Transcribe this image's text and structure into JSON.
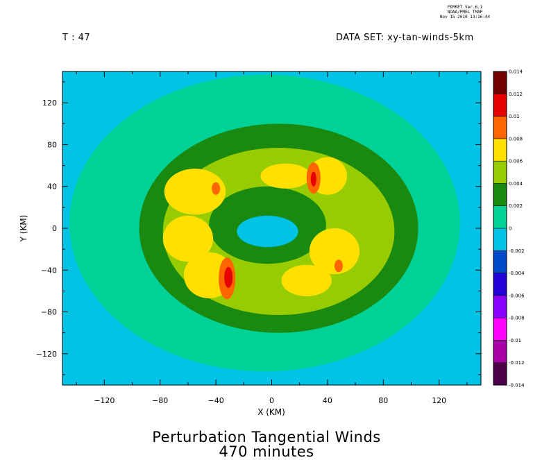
{
  "stamp": {
    "line1": "FERRET Ver.6.1",
    "line2": "NOAA/PMEL TMAP",
    "line3": "Nov 15 2010 13:16:44"
  },
  "header": {
    "time_label": "T : 47",
    "dataset_label": "DATA SET: xy-tan-winds-5km"
  },
  "title": {
    "line1": "Perturbation Tangential Winds",
    "line2": "470 minutes"
  },
  "chart_data": {
    "type": "heatmap",
    "xlabel": "X (KM)",
    "ylabel": "Y (KM)",
    "xlim": [
      -150,
      150
    ],
    "ylim": [
      -150,
      150
    ],
    "xticks": [
      -120,
      -80,
      -40,
      0,
      40,
      80,
      120
    ],
    "yticks": [
      -120,
      -80,
      -40,
      0,
      40,
      80,
      120
    ],
    "grid": false,
    "colorbar": {
      "levels": [
        -0.014,
        -0.012,
        -0.01,
        -0.008,
        -0.006,
        -0.004,
        -0.002,
        0,
        0.002,
        0.004,
        0.006,
        0.008,
        0.01,
        0.012,
        0.014
      ],
      "level_labels": [
        "-0.014",
        "-0.012",
        "-0.01",
        "-0.008",
        "-0.006",
        "-0.004",
        "-0.002",
        "0",
        "0.002",
        "0.004",
        "0.006",
        "0.008",
        "0.01",
        "0.012",
        "0.014"
      ],
      "colors": [
        "#4a0048",
        "#a800a8",
        "#ff00ff",
        "#8a00ff",
        "#2200d8",
        "#0048c8",
        "#00c3e6",
        "#00d197",
        "#198a0f",
        "#97cc00",
        "#ffe000",
        "#ff6600",
        "#e60000",
        "#720000"
      ]
    },
    "features": [
      {
        "shape": "ellipse",
        "cx": -5,
        "cy": 5,
        "rx": 140,
        "ry": 142,
        "value_range": [
          0,
          0.002
        ]
      },
      {
        "shape": "ellipse",
        "cx": 5,
        "cy": 0,
        "rx": 100,
        "ry": 100,
        "value_range": [
          0.002,
          0.004
        ]
      },
      {
        "shape": "ellipse",
        "cx": 5,
        "cy": -3,
        "rx": 83,
        "ry": 80,
        "value_range": [
          0.004,
          0.006
        ]
      },
      {
        "shape": "ellipse",
        "cx": -3,
        "cy": 3,
        "rx": 42,
        "ry": 37,
        "value_range": [
          0.002,
          0.004
        ]
      },
      {
        "shape": "ellipse",
        "cx": -3,
        "cy": -3,
        "rx": 22,
        "ry": 15,
        "value_range": [
          -0.002,
          0
        ]
      },
      {
        "shape": "ellipse",
        "cx": -55,
        "cy": 35,
        "rx": 22,
        "ry": 22,
        "value_range": [
          0.006,
          0.008
        ]
      },
      {
        "shape": "ellipse",
        "cx": -60,
        "cy": -10,
        "rx": 18,
        "ry": 22,
        "value_range": [
          0.006,
          0.008
        ]
      },
      {
        "shape": "ellipse",
        "cx": -45,
        "cy": -45,
        "rx": 18,
        "ry": 22,
        "value_range": [
          0.006,
          0.008
        ]
      },
      {
        "shape": "ellipse",
        "cx": 10,
        "cy": 50,
        "rx": 18,
        "ry": 12,
        "value_range": [
          0.006,
          0.008
        ]
      },
      {
        "shape": "ellipse",
        "cx": 40,
        "cy": 50,
        "rx": 14,
        "ry": 18,
        "value_range": [
          0.006,
          0.008
        ]
      },
      {
        "shape": "ellipse",
        "cx": 45,
        "cy": -22,
        "rx": 18,
        "ry": 22,
        "value_range": [
          0.006,
          0.008
        ]
      },
      {
        "shape": "ellipse",
        "cx": 25,
        "cy": -50,
        "rx": 18,
        "ry": 15,
        "value_range": [
          0.006,
          0.008
        ]
      },
      {
        "shape": "ellipse",
        "cx": -32,
        "cy": -48,
        "rx": 6,
        "ry": 20,
        "value_range": [
          0.008,
          0.01
        ]
      },
      {
        "shape": "ellipse",
        "cx": -31,
        "cy": -47,
        "rx": 3,
        "ry": 10,
        "value_range": [
          0.01,
          0.012
        ]
      },
      {
        "shape": "ellipse",
        "cx": 30,
        "cy": 48,
        "rx": 5,
        "ry": 15,
        "value_range": [
          0.008,
          0.01
        ]
      },
      {
        "shape": "ellipse",
        "cx": 30,
        "cy": 47,
        "rx": 2,
        "ry": 7,
        "value_range": [
          0.01,
          0.012
        ]
      },
      {
        "shape": "ellipse",
        "cx": -40,
        "cy": 38,
        "rx": 3,
        "ry": 6,
        "value_range": [
          0.008,
          0.01
        ]
      },
      {
        "shape": "ellipse",
        "cx": 48,
        "cy": -36,
        "rx": 3,
        "ry": 6,
        "value_range": [
          0.008,
          0.01
        ]
      }
    ]
  }
}
